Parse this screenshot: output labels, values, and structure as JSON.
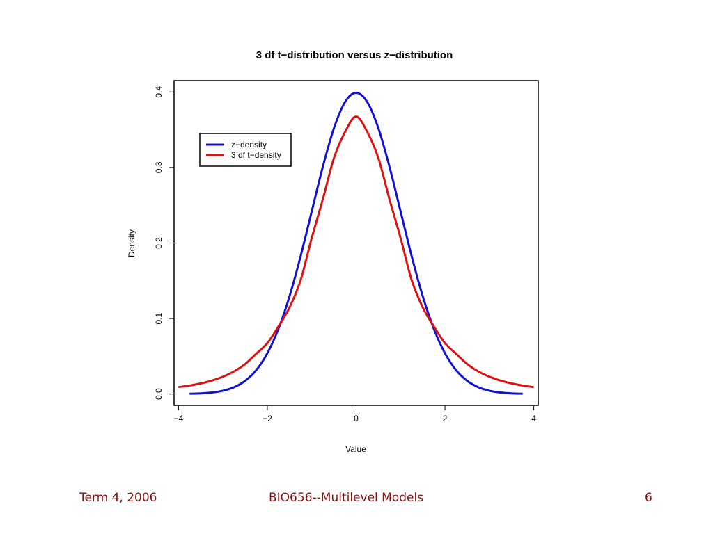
{
  "chart_data": {
    "type": "line",
    "title": "3 df t−distribution versus z−distribution",
    "xlabel": "Value",
    "ylabel": "Density",
    "xlim": [
      -4.1,
      4.1
    ],
    "ylim": [
      -0.015,
      0.415
    ],
    "x_ticks": [
      -4,
      -2,
      0,
      2,
      4
    ],
    "x_tick_labels": [
      "−4",
      "−2",
      "0",
      "2",
      "4"
    ],
    "y_ticks": [
      0.0,
      0.1,
      0.2,
      0.3,
      0.4
    ],
    "y_tick_labels": [
      "0.0",
      "0.1",
      "0.2",
      "0.3",
      "0.4"
    ],
    "grid": false,
    "legend_position": "top-left",
    "x": [
      -4.0,
      -3.75,
      -3.5,
      -3.25,
      -3.0,
      -2.75,
      -2.5,
      -2.25,
      -2.0,
      -1.75,
      -1.5,
      -1.25,
      -1.0,
      -0.75,
      -0.5,
      -0.25,
      0.0,
      0.25,
      0.5,
      0.75,
      1.0,
      1.25,
      1.5,
      1.75,
      2.0,
      2.25,
      2.5,
      2.75,
      3.0,
      3.25,
      3.5,
      3.75,
      4.0
    ],
    "series": [
      {
        "name": "z−density",
        "color": "#1010d8",
        "x": [
          -3.75,
          -3.5,
          -3.25,
          -3.0,
          -2.75,
          -2.5,
          -2.25,
          -2.0,
          -1.75,
          -1.5,
          -1.25,
          -1.0,
          -0.75,
          -0.5,
          -0.25,
          0.0,
          0.25,
          0.5,
          0.75,
          1.0,
          1.25,
          1.5,
          1.75,
          2.0,
          2.25,
          2.5,
          2.75,
          3.0,
          3.25,
          3.5,
          3.75
        ],
        "values": [
          0.0004,
          0.0009,
          0.002,
          0.0044,
          0.0091,
          0.0175,
          0.0317,
          0.054,
          0.0863,
          0.1295,
          0.1826,
          0.242,
          0.3011,
          0.3521,
          0.3867,
          0.3989,
          0.3867,
          0.3521,
          0.3011,
          0.242,
          0.1826,
          0.1295,
          0.0863,
          0.054,
          0.0317,
          0.0175,
          0.0091,
          0.0044,
          0.002,
          0.0009,
          0.0004
        ]
      },
      {
        "name": "3 df t−density",
        "color": "#e01010",
        "x": [
          -4.0,
          -3.75,
          -3.5,
          -3.25,
          -3.0,
          -2.75,
          -2.5,
          -2.25,
          -2.0,
          -1.75,
          -1.5,
          -1.25,
          -1.0,
          -0.75,
          -0.5,
          -0.25,
          0.0,
          0.25,
          0.5,
          0.75,
          1.0,
          1.25,
          1.5,
          1.75,
          2.0,
          2.25,
          2.5,
          2.75,
          3.0,
          3.25,
          3.5,
          3.75,
          4.0
        ],
        "values": [
          0.0092,
          0.0113,
          0.0141,
          0.0179,
          0.023,
          0.03,
          0.0397,
          0.0533,
          0.0675,
          0.0895,
          0.1147,
          0.1509,
          0.2067,
          0.258,
          0.3125,
          0.347,
          0.3676,
          0.347,
          0.3125,
          0.258,
          0.2067,
          0.1509,
          0.1147,
          0.0895,
          0.0675,
          0.0533,
          0.0397,
          0.03,
          0.023,
          0.0179,
          0.0141,
          0.0113,
          0.0092
        ]
      }
    ]
  },
  "footer": {
    "left": "Term 4, 2006",
    "center": "BIO656--Multilevel Models",
    "right": "6"
  }
}
